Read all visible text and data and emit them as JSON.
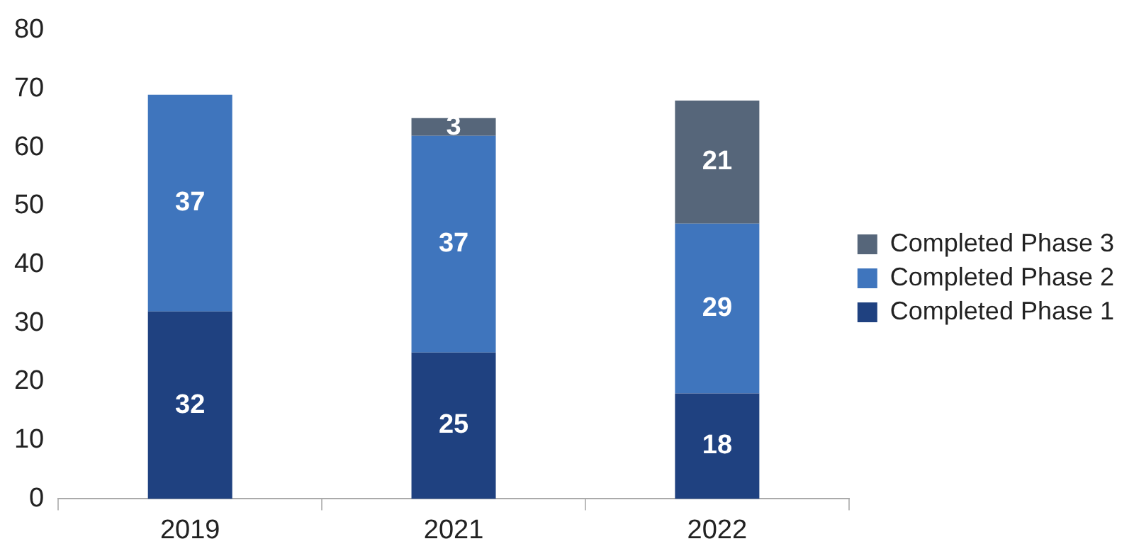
{
  "chart_data": {
    "type": "bar",
    "stacked": true,
    "categories": [
      "2019",
      "2021",
      "2022"
    ],
    "series": [
      {
        "name": "Completed Phase 1",
        "color": "#1f4180",
        "values": [
          32,
          25,
          18
        ]
      },
      {
        "name": "Completed Phase 2",
        "color": "#3f75bd",
        "values": [
          37,
          37,
          29
        ]
      },
      {
        "name": "Completed Phase 3",
        "color": "#56667a",
        "values": [
          null,
          3,
          21
        ]
      }
    ],
    "ylim": [
      0,
      80
    ],
    "yticks": [
      0,
      10,
      20,
      30,
      40,
      50,
      60,
      70,
      80
    ],
    "grid": false,
    "legend": "right",
    "data_labels": true
  }
}
